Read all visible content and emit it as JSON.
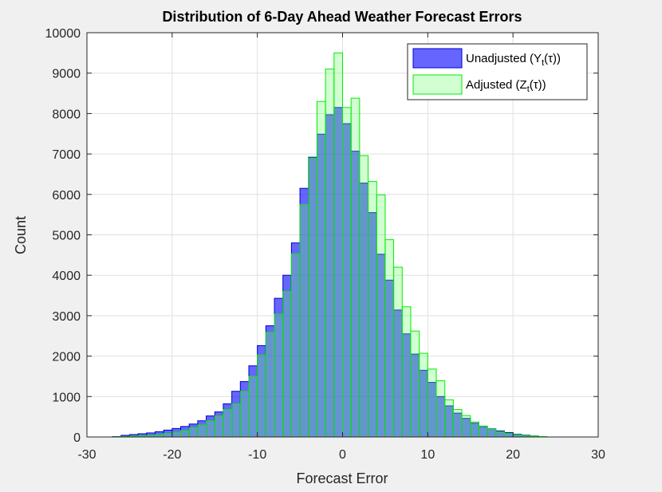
{
  "chart_data": {
    "type": "bar",
    "title": "Distribution of 6-Day Ahead Weather Forecast Errors",
    "xlabel": "Forecast Error",
    "ylabel": "Count",
    "xlim": [
      -30,
      30
    ],
    "ylim": [
      0,
      10000
    ],
    "xticks": [
      "-30",
      "-20",
      "-10",
      "0",
      "10",
      "20",
      "30"
    ],
    "yticks": [
      "0",
      "1000",
      "2000",
      "3000",
      "4000",
      "5000",
      "6000",
      "7000",
      "8000",
      "9000",
      "10000"
    ],
    "grid": true,
    "legend_position": "top-right",
    "bin_width": 1,
    "bin_edges_start": -27,
    "series": [
      {
        "name": "Unadjusted (Y_t(τ))",
        "face_color": "#0000ff",
        "edge_color": "#0000cc",
        "values": [
          10,
          40,
          60,
          80,
          100,
          130,
          170,
          210,
          260,
          320,
          400,
          520,
          620,
          820,
          1130,
          1370,
          1760,
          2260,
          2750,
          3430,
          4000,
          4800,
          6150,
          6920,
          7490,
          7970,
          8150,
          7750,
          7070,
          6280,
          5550,
          4520,
          3880,
          3140,
          2550,
          2050,
          1650,
          1350,
          1000,
          770,
          590,
          460,
          340,
          260,
          200,
          150,
          110,
          70,
          45,
          25,
          10
        ]
      },
      {
        "name": "Adjusted (Z_t(τ))",
        "face_color": "#66ff66",
        "edge_color": "#00ee00",
        "values": [
          5,
          10,
          20,
          30,
          40,
          60,
          90,
          120,
          160,
          230,
          300,
          400,
          520,
          680,
          820,
          1130,
          1500,
          2030,
          2590,
          3040,
          3600,
          4530,
          5750,
          6900,
          8300,
          9100,
          9500,
          8150,
          8380,
          6960,
          6320,
          5990,
          4880,
          4200,
          3220,
          2620,
          2070,
          1680,
          1390,
          920,
          680,
          530,
          370,
          270,
          190,
          130,
          90,
          60,
          35,
          20,
          10
        ]
      }
    ]
  },
  "legend": {
    "unadjusted_prefix": "Unadjusted (Y",
    "unadjusted_sub": "t",
    "unadjusted_suffix": "(τ))",
    "adjusted_prefix": "Adjusted (Z",
    "adjusted_sub": "t",
    "adjusted_suffix": "(τ))"
  }
}
